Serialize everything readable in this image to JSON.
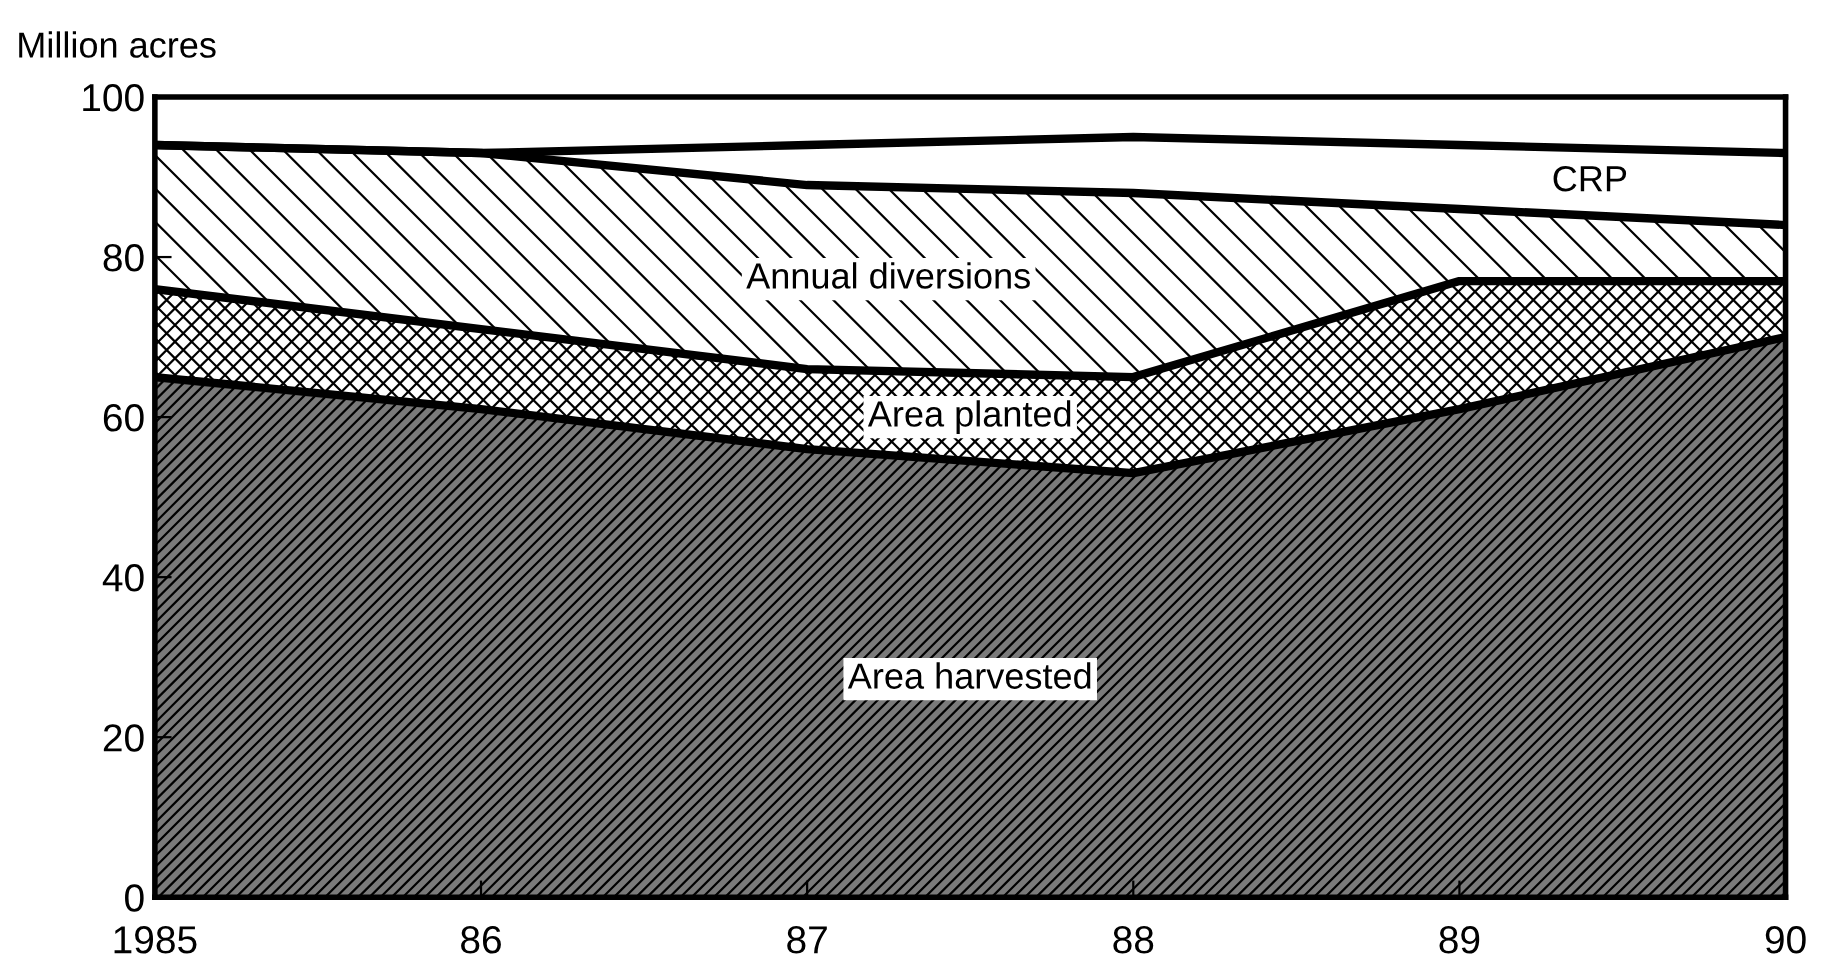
{
  "chart_data": {
    "type": "area",
    "stacked": true,
    "ylabel": "Million acres",
    "x": [
      1985,
      1986,
      1987,
      1988,
      1989,
      1990
    ],
    "series": [
      {
        "name": "Area harvested",
        "color": "#7a7a7a",
        "values": [
          65,
          61,
          56,
          53,
          61,
          70
        ]
      },
      {
        "name": "Area planted",
        "color": "#ffffff",
        "values": [
          11,
          10,
          10,
          12,
          16,
          7
        ]
      },
      {
        "name": "Annual diversions",
        "color": "#ffffff",
        "values": [
          18,
          22,
          23,
          23,
          9,
          7
        ]
      },
      {
        "name": "CRP",
        "color": "#ffffff",
        "values": [
          0,
          0,
          5,
          7,
          8,
          9
        ]
      }
    ],
    "xlim": [
      1985,
      1990
    ],
    "ylim": [
      0,
      100
    ],
    "xticks": [
      1985,
      {
        "value": 1986,
        "label": "86"
      },
      {
        "value": 1987,
        "label": "87"
      },
      {
        "value": 1988,
        "label": "88"
      },
      {
        "value": 1989,
        "label": "89"
      },
      {
        "value": 1990,
        "label": "90"
      }
    ],
    "yticks": [
      0,
      20,
      40,
      60,
      80,
      100
    ],
    "grid": false,
    "legend": false
  }
}
